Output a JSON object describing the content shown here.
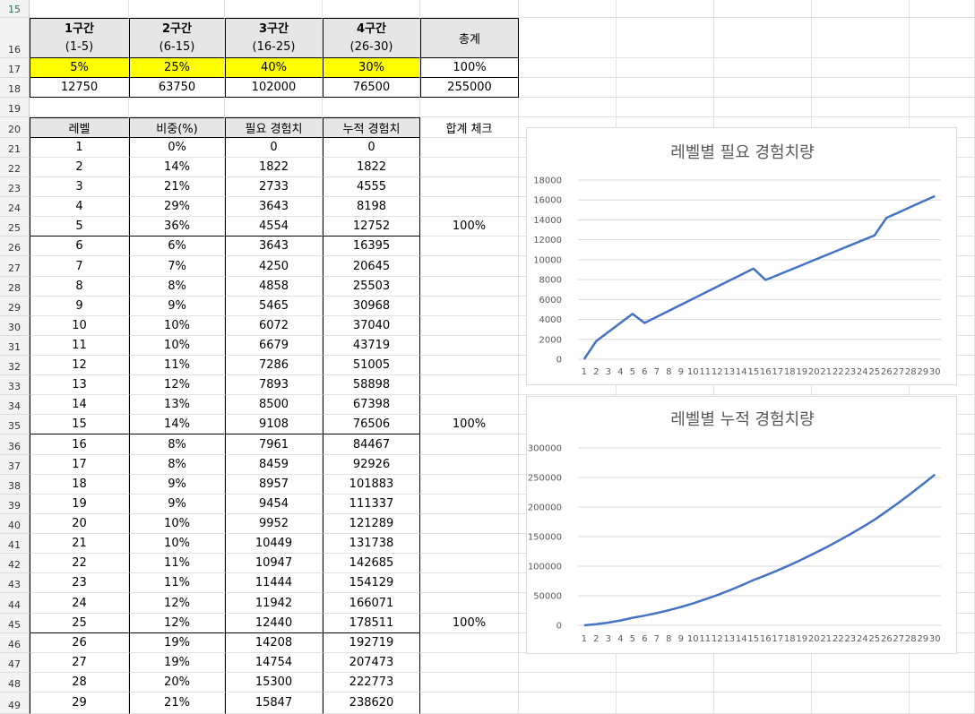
{
  "selected_cell": "A15",
  "section_table": {
    "headers": [
      {
        "name": "1구간",
        "range": "(1-5)"
      },
      {
        "name": "2구간",
        "range": "(6-15)"
      },
      {
        "name": "3구간",
        "range": "(16-25)"
      },
      {
        "name": "4구간",
        "range": "(26-30)"
      }
    ],
    "total_label": "총계",
    "percents": [
      "5%",
      "25%",
      "40%",
      "30%"
    ],
    "percent_total": "100%",
    "amounts": [
      "12750",
      "63750",
      "102000",
      "76500"
    ],
    "amount_total": "255000"
  },
  "main_table": {
    "headers": [
      "레벨",
      "비중(%)",
      "필요 경험치",
      "누적 경험치"
    ],
    "check_header": "합계 체크",
    "rows": [
      {
        "level": "1",
        "weight": "0%",
        "required": "0",
        "cumulative": "0",
        "check": ""
      },
      {
        "level": "2",
        "weight": "14%",
        "required": "1822",
        "cumulative": "1822",
        "check": ""
      },
      {
        "level": "3",
        "weight": "21%",
        "required": "2733",
        "cumulative": "4555",
        "check": ""
      },
      {
        "level": "4",
        "weight": "29%",
        "required": "3643",
        "cumulative": "8198",
        "check": ""
      },
      {
        "level": "5",
        "weight": "36%",
        "required": "4554",
        "cumulative": "12752",
        "check": "100%"
      },
      {
        "level": "6",
        "weight": "6%",
        "required": "3643",
        "cumulative": "16395",
        "check": ""
      },
      {
        "level": "7",
        "weight": "7%",
        "required": "4250",
        "cumulative": "20645",
        "check": ""
      },
      {
        "level": "8",
        "weight": "8%",
        "required": "4858",
        "cumulative": "25503",
        "check": ""
      },
      {
        "level": "9",
        "weight": "9%",
        "required": "5465",
        "cumulative": "30968",
        "check": ""
      },
      {
        "level": "10",
        "weight": "10%",
        "required": "6072",
        "cumulative": "37040",
        "check": ""
      },
      {
        "level": "11",
        "weight": "10%",
        "required": "6679",
        "cumulative": "43719",
        "check": ""
      },
      {
        "level": "12",
        "weight": "11%",
        "required": "7286",
        "cumulative": "51005",
        "check": ""
      },
      {
        "level": "13",
        "weight": "12%",
        "required": "7893",
        "cumulative": "58898",
        "check": ""
      },
      {
        "level": "14",
        "weight": "13%",
        "required": "8500",
        "cumulative": "67398",
        "check": ""
      },
      {
        "level": "15",
        "weight": "14%",
        "required": "9108",
        "cumulative": "76506",
        "check": "100%"
      },
      {
        "level": "16",
        "weight": "8%",
        "required": "7961",
        "cumulative": "84467",
        "check": ""
      },
      {
        "level": "17",
        "weight": "8%",
        "required": "8459",
        "cumulative": "92926",
        "check": ""
      },
      {
        "level": "18",
        "weight": "9%",
        "required": "8957",
        "cumulative": "101883",
        "check": ""
      },
      {
        "level": "19",
        "weight": "9%",
        "required": "9454",
        "cumulative": "111337",
        "check": ""
      },
      {
        "level": "20",
        "weight": "10%",
        "required": "9952",
        "cumulative": "121289",
        "check": ""
      },
      {
        "level": "21",
        "weight": "10%",
        "required": "10449",
        "cumulative": "131738",
        "check": ""
      },
      {
        "level": "22",
        "weight": "11%",
        "required": "10947",
        "cumulative": "142685",
        "check": ""
      },
      {
        "level": "23",
        "weight": "11%",
        "required": "11444",
        "cumulative": "154129",
        "check": ""
      },
      {
        "level": "24",
        "weight": "12%",
        "required": "11942",
        "cumulative": "166071",
        "check": ""
      },
      {
        "level": "25",
        "weight": "12%",
        "required": "12440",
        "cumulative": "178511",
        "check": "100%"
      },
      {
        "level": "26",
        "weight": "19%",
        "required": "14208",
        "cumulative": "192719",
        "check": ""
      },
      {
        "level": "27",
        "weight": "19%",
        "required": "14754",
        "cumulative": "207473",
        "check": ""
      },
      {
        "level": "28",
        "weight": "20%",
        "required": "15300",
        "cumulative": "222773",
        "check": ""
      },
      {
        "level": "29",
        "weight": "21%",
        "required": "15847",
        "cumulative": "238620",
        "check": ""
      }
    ]
  },
  "row_numbers": [
    "15",
    "16",
    "17",
    "18",
    "19",
    "20",
    "21",
    "22",
    "23",
    "24",
    "25",
    "26",
    "27",
    "28",
    "29",
    "30",
    "31",
    "32",
    "33",
    "34",
    "35",
    "36",
    "37",
    "38",
    "39",
    "40",
    "41",
    "42",
    "43",
    "44",
    "45",
    "46",
    "47",
    "48",
    "49"
  ],
  "colors": {
    "line": "#4472c4",
    "yellow": "#ffff00",
    "header_fill": "#e6e6e6",
    "grid": "#d9d9d9",
    "text": "#595959"
  },
  "chart_data": [
    {
      "type": "line",
      "title": "레벨별 필요 경험치량",
      "categories": [
        "1",
        "2",
        "3",
        "4",
        "5",
        "6",
        "7",
        "8",
        "9",
        "10",
        "11",
        "12",
        "13",
        "14",
        "15",
        "16",
        "17",
        "18",
        "19",
        "20",
        "21",
        "22",
        "23",
        "24",
        "25",
        "26",
        "27",
        "28",
        "29",
        "30"
      ],
      "values": [
        0,
        1822,
        2733,
        3643,
        4554,
        3643,
        4250,
        4858,
        5465,
        6072,
        6679,
        7286,
        7893,
        8500,
        9108,
        7961,
        8459,
        8957,
        9454,
        9952,
        10449,
        10947,
        11444,
        11942,
        12440,
        14208,
        14754,
        15300,
        15847,
        16393
      ],
      "ylim": [
        0,
        18000
      ],
      "yticks": [
        "0",
        "2000",
        "4000",
        "6000",
        "8000",
        "10000",
        "12000",
        "14000",
        "16000",
        "18000"
      ],
      "xlabel": "",
      "ylabel": "",
      "grid": true,
      "legend": "none"
    },
    {
      "type": "line",
      "title": "레벨별 누적 경험치량",
      "categories": [
        "1",
        "2",
        "3",
        "4",
        "5",
        "6",
        "7",
        "8",
        "9",
        "10",
        "11",
        "12",
        "13",
        "14",
        "15",
        "16",
        "17",
        "18",
        "19",
        "20",
        "21",
        "22",
        "23",
        "24",
        "25",
        "26",
        "27",
        "28",
        "29",
        "30"
      ],
      "values": [
        0,
        1822,
        4555,
        8198,
        12752,
        16395,
        20645,
        25503,
        30968,
        37040,
        43719,
        51005,
        58898,
        67398,
        76506,
        84467,
        92926,
        101883,
        111337,
        121289,
        131738,
        142685,
        154129,
        166071,
        178511,
        192719,
        207473,
        222773,
        238620,
        255013
      ],
      "ylim": [
        0,
        300000
      ],
      "yticks": [
        "0",
        "50000",
        "100000",
        "150000",
        "200000",
        "250000",
        "300000"
      ],
      "xlabel": "",
      "ylabel": "",
      "grid": true,
      "legend": "none"
    }
  ]
}
